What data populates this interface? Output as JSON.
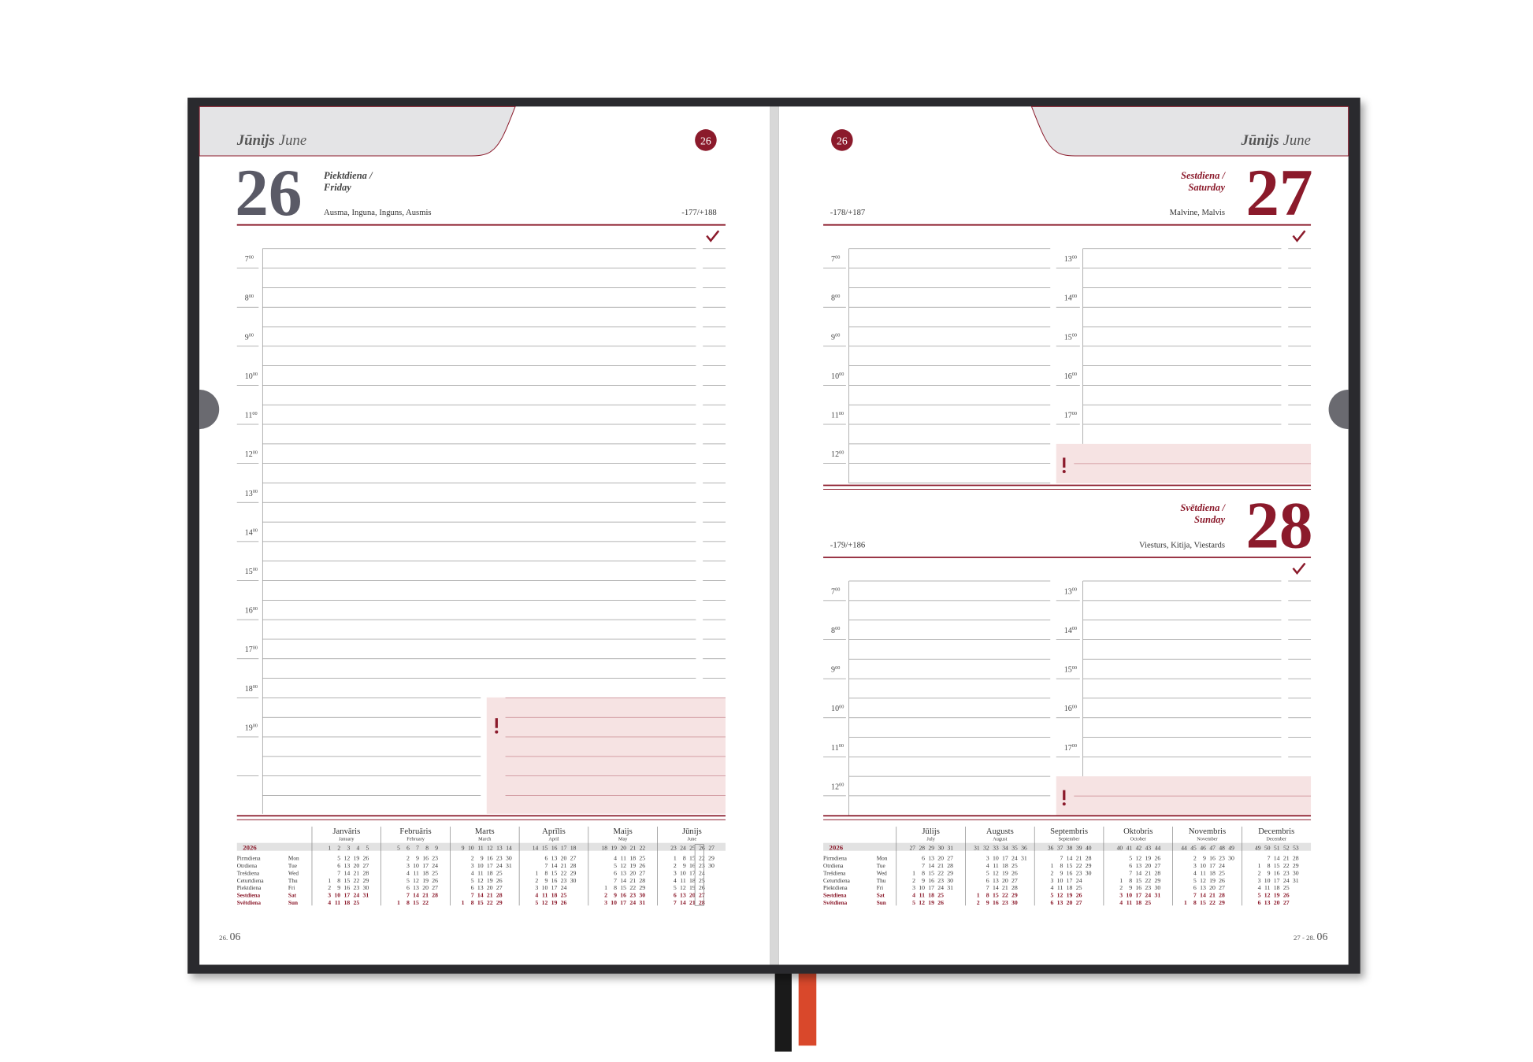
{
  "left_page": {
    "month": "Jūnijs",
    "month_en": "June",
    "week": "26",
    "day": "26",
    "weekday": "Piektdiena /",
    "weekday_en": "Friday",
    "names": "Ausma, Inguna, Inguns, Ausmis",
    "day_count": "-177/+188",
    "hours": [
      7,
      8,
      9,
      10,
      11,
      12,
      13,
      14,
      15,
      16,
      17,
      18,
      19
    ],
    "footer_day": "26.",
    "footer_month": "06"
  },
  "right_page": {
    "month": "Jūnijs",
    "month_en": "June",
    "week": "26",
    "days": [
      {
        "day": "27",
        "weekday": "Sestdiena /",
        "weekday_en": "Saturday",
        "names": "Malvine, Malvis",
        "day_count": "-178/+187",
        "hours_left": [
          7,
          8,
          9,
          10,
          11,
          12
        ],
        "hours_right": [
          13,
          14,
          15,
          16,
          17
        ]
      },
      {
        "day": "28",
        "weekday": "Svētdiena /",
        "weekday_en": "Sunday",
        "names": "Viesturs, Kitija, Viestards",
        "day_count": "-179/+186",
        "hours_left": [
          7,
          8,
          9,
          10,
          11,
          12
        ],
        "hours_right": [
          13,
          14,
          15,
          16,
          17
        ]
      }
    ],
    "footer_day": "27 - 28.",
    "footer_month": "06"
  },
  "minutes": "00",
  "calendar": {
    "year": "2026",
    "weekdays": [
      "Pirmdiena",
      "Otrdiena",
      "Trešdiena",
      "Ceturtdiena",
      "Piektdiena",
      "Sestdiena",
      "Svētdiena"
    ],
    "weekdays_en": [
      "Mon",
      "Tue",
      "Wed",
      "Thu",
      "Fri",
      "Sat",
      "Sun"
    ],
    "months": [
      {
        "name": "Janvāris",
        "name_en": "January",
        "weeks": [
          1,
          2,
          3,
          4,
          5
        ],
        "days": [
          [
            null,
            5,
            12,
            19,
            26
          ],
          [
            null,
            6,
            13,
            20,
            27
          ],
          [
            null,
            7,
            14,
            21,
            28
          ],
          [
            1,
            8,
            15,
            22,
            29
          ],
          [
            2,
            9,
            16,
            23,
            30
          ],
          [
            3,
            10,
            17,
            24,
            31
          ],
          [
            4,
            11,
            18,
            25,
            null
          ]
        ]
      },
      {
        "name": "Februāris",
        "name_en": "February",
        "weeks": [
          5,
          6,
          7,
          8,
          9
        ],
        "days": [
          [
            null,
            2,
            9,
            16,
            23
          ],
          [
            null,
            3,
            10,
            17,
            24
          ],
          [
            null,
            4,
            11,
            18,
            25
          ],
          [
            null,
            5,
            12,
            19,
            26
          ],
          [
            null,
            6,
            13,
            20,
            27
          ],
          [
            null,
            7,
            14,
            21,
            28
          ],
          [
            1,
            8,
            15,
            22,
            null
          ]
        ]
      },
      {
        "name": "Marts",
        "name_en": "March",
        "weeks": [
          9,
          10,
          11,
          12,
          13,
          14
        ],
        "days": [
          [
            null,
            2,
            9,
            16,
            23,
            30
          ],
          [
            null,
            3,
            10,
            17,
            24,
            31
          ],
          [
            null,
            4,
            11,
            18,
            25,
            null
          ],
          [
            null,
            5,
            12,
            19,
            26,
            null
          ],
          [
            null,
            6,
            13,
            20,
            27,
            null
          ],
          [
            null,
            7,
            14,
            21,
            28,
            null
          ],
          [
            1,
            8,
            15,
            22,
            29,
            null
          ]
        ]
      },
      {
        "name": "Aprīlis",
        "name_en": "April",
        "weeks": [
          14,
          15,
          16,
          17,
          18
        ],
        "days": [
          [
            null,
            6,
            13,
            20,
            27
          ],
          [
            null,
            7,
            14,
            21,
            28
          ],
          [
            1,
            8,
            15,
            22,
            29
          ],
          [
            2,
            9,
            16,
            23,
            30
          ],
          [
            3,
            10,
            17,
            24,
            null
          ],
          [
            4,
            11,
            18,
            25,
            null
          ],
          [
            5,
            12,
            19,
            26,
            null
          ]
        ]
      },
      {
        "name": "Maijs",
        "name_en": "May",
        "weeks": [
          18,
          19,
          20,
          21,
          22
        ],
        "days": [
          [
            null,
            4,
            11,
            18,
            25
          ],
          [
            null,
            5,
            12,
            19,
            26
          ],
          [
            null,
            6,
            13,
            20,
            27
          ],
          [
            null,
            7,
            14,
            21,
            28
          ],
          [
            1,
            8,
            15,
            22,
            29
          ],
          [
            2,
            9,
            16,
            23,
            30
          ],
          [
            3,
            10,
            17,
            24,
            31
          ]
        ]
      },
      {
        "name": "Jūnijs",
        "name_en": "June",
        "weeks": [
          23,
          24,
          25,
          26,
          27
        ],
        "days": [
          [
            1,
            8,
            15,
            22,
            29
          ],
          [
            2,
            9,
            16,
            23,
            30
          ],
          [
            3,
            10,
            17,
            24,
            null
          ],
          [
            4,
            11,
            18,
            25,
            null
          ],
          [
            5,
            12,
            19,
            26,
            null
          ],
          [
            6,
            13,
            20,
            27,
            null
          ],
          [
            7,
            14,
            21,
            28,
            null
          ]
        ]
      },
      {
        "name": "Jūlijs",
        "name_en": "July",
        "weeks": [
          27,
          28,
          29,
          30,
          31
        ],
        "days": [
          [
            null,
            6,
            13,
            20,
            27
          ],
          [
            null,
            7,
            14,
            21,
            28
          ],
          [
            1,
            8,
            15,
            22,
            29
          ],
          [
            2,
            9,
            16,
            23,
            30
          ],
          [
            3,
            10,
            17,
            24,
            31
          ],
          [
            4,
            11,
            18,
            25,
            null
          ],
          [
            5,
            12,
            19,
            26,
            null
          ]
        ]
      },
      {
        "name": "Augusts",
        "name_en": "August",
        "weeks": [
          31,
          32,
          33,
          34,
          35,
          36
        ],
        "days": [
          [
            null,
            3,
            10,
            17,
            24,
            31
          ],
          [
            null,
            4,
            11,
            18,
            25,
            null
          ],
          [
            null,
            5,
            12,
            19,
            26,
            null
          ],
          [
            null,
            6,
            13,
            20,
            27,
            null
          ],
          [
            null,
            7,
            14,
            21,
            28,
            null
          ],
          [
            1,
            8,
            15,
            22,
            29,
            null
          ],
          [
            2,
            9,
            16,
            23,
            30,
            null
          ]
        ]
      },
      {
        "name": "Septembris",
        "name_en": "September",
        "weeks": [
          36,
          37,
          38,
          39,
          40
        ],
        "days": [
          [
            null,
            7,
            14,
            21,
            28
          ],
          [
            1,
            8,
            15,
            22,
            29
          ],
          [
            2,
            9,
            16,
            23,
            30
          ],
          [
            3,
            10,
            17,
            24,
            null
          ],
          [
            4,
            11,
            18,
            25,
            null
          ],
          [
            5,
            12,
            19,
            26,
            null
          ],
          [
            6,
            13,
            20,
            27,
            null
          ]
        ]
      },
      {
        "name": "Oktobris",
        "name_en": "October",
        "weeks": [
          40,
          41,
          42,
          43,
          44
        ],
        "days": [
          [
            null,
            5,
            12,
            19,
            26
          ],
          [
            null,
            6,
            13,
            20,
            27
          ],
          [
            null,
            7,
            14,
            21,
            28
          ],
          [
            1,
            8,
            15,
            22,
            29
          ],
          [
            2,
            9,
            16,
            23,
            30
          ],
          [
            3,
            10,
            17,
            24,
            31
          ],
          [
            4,
            11,
            18,
            25,
            null
          ]
        ]
      },
      {
        "name": "Novembris",
        "name_en": "November",
        "weeks": [
          44,
          45,
          46,
          47,
          48,
          49
        ],
        "days": [
          [
            null,
            2,
            9,
            16,
            23,
            30
          ],
          [
            null,
            3,
            10,
            17,
            24,
            null
          ],
          [
            null,
            4,
            11,
            18,
            25,
            null
          ],
          [
            null,
            5,
            12,
            19,
            26,
            null
          ],
          [
            null,
            6,
            13,
            20,
            27,
            null
          ],
          [
            null,
            7,
            14,
            21,
            28,
            null
          ],
          [
            1,
            8,
            15,
            22,
            29,
            null
          ]
        ]
      },
      {
        "name": "Decembris",
        "name_en": "December",
        "weeks": [
          49,
          50,
          51,
          52,
          53
        ],
        "days": [
          [
            null,
            7,
            14,
            21,
            28
          ],
          [
            1,
            8,
            15,
            22,
            29
          ],
          [
            2,
            9,
            16,
            23,
            30
          ],
          [
            3,
            10,
            17,
            24,
            31
          ],
          [
            4,
            11,
            18,
            25,
            null
          ],
          [
            5,
            12,
            19,
            26,
            null
          ],
          [
            6,
            13,
            20,
            27,
            null
          ]
        ]
      }
    ]
  }
}
